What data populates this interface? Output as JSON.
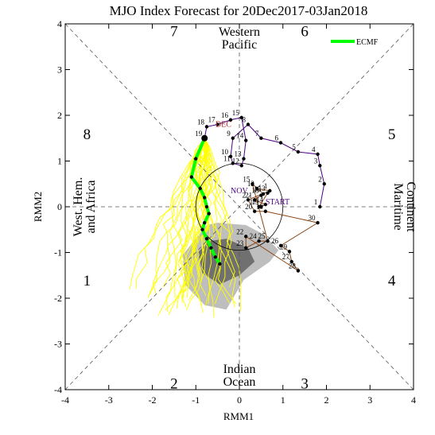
{
  "chart_data": {
    "type": "scatter",
    "title": "MJO Index Forecast for 20Dec2017-03Jan2018",
    "xlabel": "RMM1",
    "ylabel": "RMM2",
    "xlim": [
      -4,
      4
    ],
    "ylim": [
      -4,
      4
    ],
    "xticks": [
      "-4",
      "-3",
      "-2",
      "-1",
      "0",
      "1",
      "2",
      "3",
      "4"
    ],
    "yticks": [
      "-4",
      "-3",
      "-2",
      "-1",
      "0",
      "1",
      "2",
      "3",
      "4"
    ],
    "phase_labels": [
      {
        "phase": "1",
        "x": -3.5,
        "y": -1.6
      },
      {
        "phase": "2",
        "x": -1.5,
        "y": -3.85
      },
      {
        "phase": "3",
        "x": 1.5,
        "y": -3.85
      },
      {
        "phase": "4",
        "x": 3.5,
        "y": -1.6
      },
      {
        "phase": "5",
        "x": 3.5,
        "y": 1.6
      },
      {
        "phase": "6",
        "x": 1.5,
        "y": 3.85
      },
      {
        "phase": "7",
        "x": -1.5,
        "y": 3.85
      },
      {
        "phase": "8",
        "x": -3.5,
        "y": 1.6
      }
    ],
    "regions": {
      "top": [
        "Western",
        "Pacific"
      ],
      "bottom": [
        "Indian",
        "Ocean"
      ],
      "left": [
        "West. Hem.",
        "and Africa"
      ],
      "right": [
        "Maritime",
        "Continent"
      ]
    },
    "legend": {
      "label": "ECMF",
      "color": "#00ff00",
      "position": "top-right"
    },
    "colors": {
      "nov": "#8b4513",
      "dec": "#4b0082",
      "dec_text": "#a52a2a",
      "nov_text": "#4b0082",
      "forecast": "#00ff00",
      "ensemble": "#ffff00",
      "spread_light": "#bebebe",
      "spread_dark": "#707070"
    },
    "month_labels": [
      {
        "text": "DEC",
        "x": -0.55,
        "y": 1.75,
        "color": "#a52a2a"
      },
      {
        "text": "NOV",
        "x": -0.2,
        "y": 0.3,
        "color": "#4b0082"
      },
      {
        "text": "START",
        "x": 0.6,
        "y": 0.05,
        "color": "#4b0082"
      }
    ],
    "obs_nov": {
      "labels": [
        "12",
        "1",
        "2",
        "20",
        "10",
        "30",
        "26",
        "29",
        "27",
        "28",
        "22",
        "23",
        "24",
        "25",
        "15",
        "16",
        "18",
        "21",
        "14",
        "19",
        "17",
        "13"
      ],
      "x": [
        0.4,
        0.7,
        0.2,
        0.35,
        0.6,
        1.8,
        0.95,
        1.15,
        1.2,
        1.35,
        0.15,
        0.15,
        0.45,
        0.65,
        0.3,
        0.55,
        0.5,
        0.35,
        0.6,
        0.5,
        0.45,
        0.65
      ],
      "y": [
        0.4,
        0.35,
        0.15,
        -0.1,
        -0.1,
        -0.35,
        -0.85,
        -0.98,
        -1.2,
        -1.4,
        -0.65,
        -0.9,
        -0.75,
        -0.75,
        0.5,
        0.28,
        0.25,
        0.15,
        0.05,
        0.0,
        0.0,
        0.3
      ]
    },
    "obs_dec": {
      "labels": [
        "1",
        "2",
        "3",
        "4",
        "5",
        "6",
        "7",
        "8",
        "9",
        "10",
        "11",
        "12",
        "13",
        "14",
        "15",
        "16",
        "17",
        "18",
        "19"
      ],
      "x": [
        1.85,
        1.95,
        1.85,
        1.8,
        1.35,
        0.95,
        0.5,
        0.2,
        -0.15,
        -0.2,
        -0.15,
        0.05,
        0.1,
        0.15,
        0.05,
        -0.2,
        -0.5,
        -0.75,
        -0.8
      ],
      "y": [
        0.0,
        0.5,
        0.9,
        1.15,
        1.2,
        1.4,
        1.5,
        1.8,
        1.5,
        1.1,
        0.95,
        0.9,
        1.05,
        1.45,
        1.95,
        1.9,
        1.8,
        1.75,
        1.5
      ]
    },
    "forecast_ecmf": {
      "x": [
        -0.8,
        -1.0,
        -1.1,
        -0.9,
        -0.8,
        -0.75,
        -0.7,
        -0.8,
        -0.85,
        -0.75,
        -0.65,
        -0.55,
        -0.45
      ],
      "y": [
        1.5,
        1.05,
        0.65,
        0.4,
        0.2,
        0.0,
        -0.15,
        -0.35,
        -0.5,
        -0.7,
        -0.9,
        -1.1,
        -1.25
      ]
    }
  }
}
